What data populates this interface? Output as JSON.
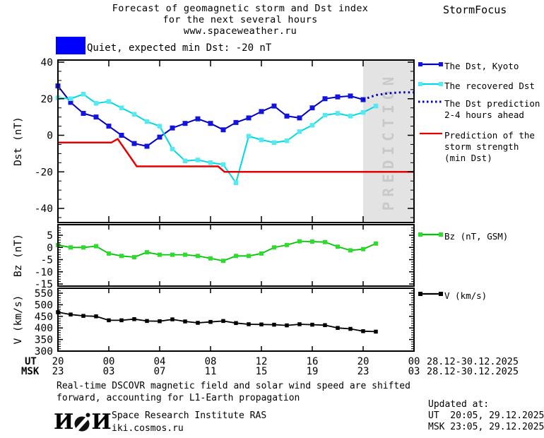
{
  "header": {
    "title_lines": [
      "Forecast of geomagnetic storm and Dst index",
      "for the next several hours",
      "www.spaceweather.ru"
    ],
    "brand": "StormFocus",
    "status": {
      "label": "Quiet, expected min Dst: -20 nT",
      "swatch_color": "#0000ff"
    }
  },
  "chart_data": {
    "type": "line",
    "title": "Forecast of geomagnetic storm and Dst index for the next several hours",
    "x_axis": {
      "description": "Time, hourly points; hour 0 = 20:00 UT 28.12.2025, hour 28 = 00:00 UT 30.12.2025",
      "ut_label": "UT",
      "msk_label": "MSK",
      "tick_hours": [
        0,
        4,
        8,
        12,
        16,
        20,
        24,
        28
      ],
      "ut_ticks": [
        "20",
        "00",
        "04",
        "08",
        "12",
        "16",
        "20",
        "00"
      ],
      "msk_ticks": [
        "23",
        "03",
        "07",
        "11",
        "15",
        "19",
        "23",
        "03"
      ],
      "date_range_ut": "28.12-30.12.2025",
      "date_range_msk": "28.12-30.12.2025"
    },
    "panels": [
      {
        "id": "dst",
        "ylabel": "Dst (nT)",
        "yticks": [
          40,
          20,
          0,
          -20,
          -40
        ],
        "ylim": [
          -45.5,
          41
        ],
        "minor_step": 5,
        "grid": false,
        "prediction_band": {
          "from_hour": 24,
          "to_hour": 28,
          "label": "PREDICTION",
          "fill": "#e3e3e3",
          "text_color": "#c9c9c9"
        },
        "series": [
          {
            "name": "The Dst, Kyoto",
            "color": "#0000b8",
            "marker_color": "#1414e0",
            "style": "solid",
            "marker": "square",
            "start_hour": 0,
            "step": 1,
            "values": [
              27,
              18,
              12,
              10,
              5,
              0,
              -4.5,
              -6,
              -1,
              4,
              6.5,
              9,
              6.5,
              3,
              7,
              9.5,
              13,
              16,
              10.5,
              9.5,
              15,
              20,
              21,
              21.5,
              19.5
            ]
          },
          {
            "name": "The recovered Dst",
            "color": "#00d8e4",
            "marker_color": "#55eaf2",
            "style": "solid",
            "marker": "square",
            "start_hour": 0,
            "step": 1,
            "values": [
              20.5,
              20,
              22.5,
              17.5,
              18.5,
              15,
              11.5,
              7.5,
              5,
              -7.5,
              -14,
              -13.5,
              -15,
              -16,
              -26,
              -0.5,
              -2.5,
              -4,
              -3,
              2,
              5.5,
              11,
              12,
              10.5,
              12.5,
              16
            ]
          },
          {
            "name": "The Dst prediction 2-4 hours ahead",
            "color": "#0000b8",
            "style": "dotted",
            "marker": "none",
            "start_hour": 24,
            "step": 1,
            "values": [
              19.5,
              22,
              23,
              23.5,
              23.5
            ]
          },
          {
            "name": "Prediction of the storm strength (min Dst)",
            "color": "#e60000",
            "style": "solid",
            "marker": "none",
            "points": [
              [
                0,
                -4
              ],
              [
                4.2,
                -4
              ],
              [
                4.7,
                -2
              ],
              [
                6.2,
                -17
              ],
              [
                12.6,
                -17
              ],
              [
                13.1,
                -20
              ],
              [
                28,
                -20
              ]
            ]
          }
        ]
      },
      {
        "id": "bz",
        "ylabel": "Bz (nT)",
        "yticks": [
          5,
          0,
          -5,
          -10,
          -15
        ],
        "ylim": [
          -15.8,
          9.3
        ],
        "minor_step": 1,
        "grid": false,
        "series": [
          {
            "name": "Bz (nT, GSM)",
            "color": "#00c400",
            "marker_color": "#2ade2a",
            "style": "solid",
            "marker": "square",
            "start_hour": 0,
            "step": 1,
            "values": [
              1,
              0,
              0,
              0.5,
              -2.5,
              -3.5,
              -4,
              -2,
              -3,
              -3,
              -3,
              -3.5,
              -4.5,
              -5.5,
              -3.5,
              -3.5,
              -2.5,
              0,
              1,
              2.5,
              2.4,
              2.2,
              0.3,
              -1.2,
              -0.7,
              1.6
            ]
          }
        ]
      },
      {
        "id": "v",
        "ylabel": "V (km/s)",
        "yticks": [
          550,
          500,
          450,
          400,
          350,
          300
        ],
        "ylim": [
          300,
          570
        ],
        "minor_step": 10,
        "grid": false,
        "series": [
          {
            "name": "V (km/s)",
            "color": "#000000",
            "marker_color": "#000000",
            "style": "solid",
            "marker": "square",
            "start_hour": 0,
            "step": 1,
            "values": [
              468,
              458,
              452,
              450,
              433,
              433,
              438,
              430,
              429,
              437,
              428,
              422,
              426,
              430,
              421,
              416,
              415,
              414,
              411,
              416,
              414,
              412,
              400,
              396,
              386,
              384
            ]
          }
        ]
      }
    ]
  },
  "legend": {
    "dst_items": [
      {
        "label_lines": [
          "The Dst, Kyoto"
        ],
        "marker": "square-line",
        "color": "#0000b8",
        "marker_color": "#1414e0"
      },
      {
        "label_lines": [
          "The recovered Dst"
        ],
        "marker": "square-line",
        "color": "#00d8e4",
        "marker_color": "#55eaf2"
      },
      {
        "label_lines": [
          "The Dst prediction",
          "2-4 hours ahead"
        ],
        "marker": "dotted-line",
        "color": "#0000b8",
        "marker_color": "#0000b8"
      },
      {
        "label_lines": [
          "Prediction of the",
          "storm strength",
          "(min Dst)"
        ],
        "marker": "solid-line",
        "color": "#e60000",
        "marker_color": "#e60000"
      }
    ],
    "bz_items": [
      {
        "label_lines": [
          "Bz (nT, GSM)"
        ],
        "marker": "square-line",
        "color": "#00c400",
        "marker_color": "#2ade2a"
      }
    ],
    "v_items": [
      {
        "label_lines": [
          "V (km/s)"
        ],
        "marker": "square-line",
        "color": "#000000",
        "marker_color": "#000000"
      }
    ]
  },
  "footer": {
    "note_lines": [
      "Real-time DSCOVR magnetic field and solar wind speed are shifted",
      "forward, accounting for L1-Earth propagation"
    ],
    "logo_left": "И",
    "logo_right": "И",
    "institute": "Space Research Institute RAS",
    "website": "iki.cosmos.ru",
    "updated": {
      "label": "Updated at:",
      "ut": "UT  20:05, 29.12.2025",
      "msk": "MSK 23:05, 29.12.2025"
    }
  }
}
